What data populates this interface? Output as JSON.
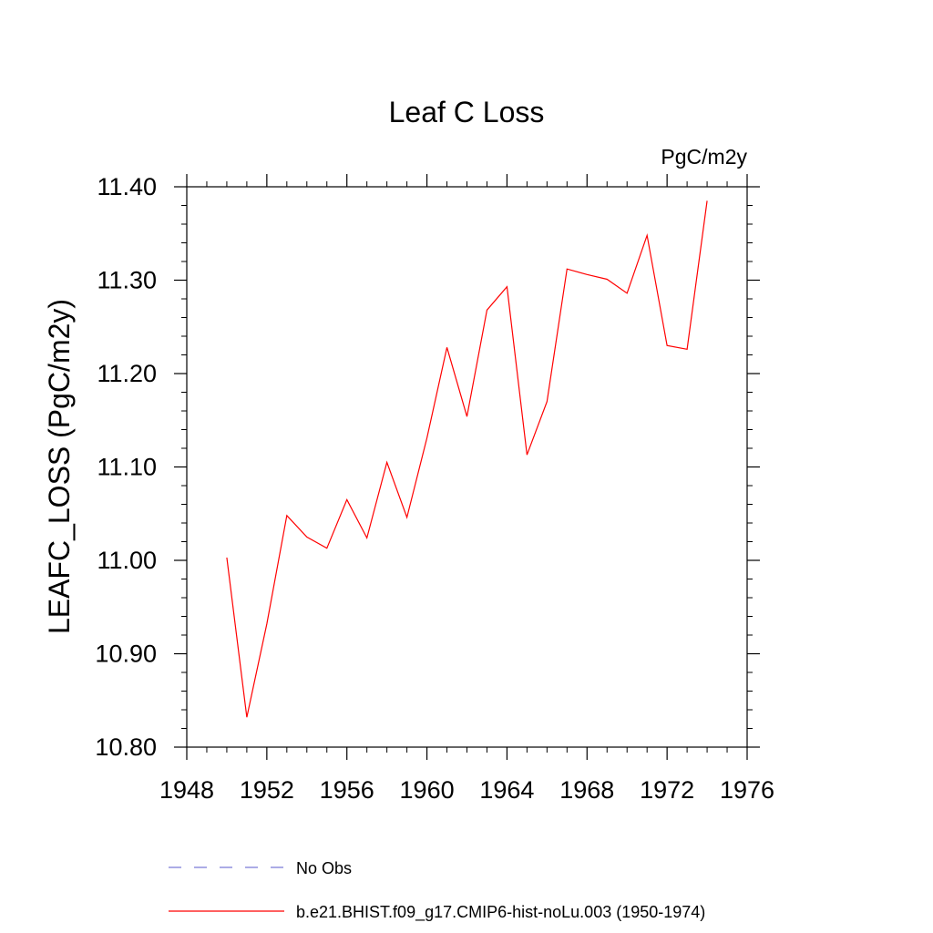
{
  "chart_data": {
    "type": "line",
    "title": "Leaf C Loss",
    "units": "PgC/m2y",
    "ylabel": "LEAFC_LOSS  (PgC/m2y)",
    "xlabel": "",
    "xlim": [
      1948,
      1976
    ],
    "ylim": [
      10.8,
      11.4
    ],
    "x_ticks": [
      1948,
      1952,
      1956,
      1960,
      1964,
      1968,
      1972,
      1976
    ],
    "y_ticks": [
      10.8,
      10.9,
      11.0,
      11.1,
      11.2,
      11.3,
      11.4
    ],
    "x_tick_labels": [
      "1948",
      "1952",
      "1956",
      "1960",
      "1964",
      "1968",
      "1972",
      "1976"
    ],
    "y_tick_labels": [
      "10.80",
      "10.90",
      "11.00",
      "11.10",
      "11.20",
      "11.30",
      "11.40"
    ],
    "grid": false,
    "legend_position": "bottom",
    "series": [
      {
        "name": "b.e21.BHIST.f09_g17.CMIP6-hist-noLu.003 (1950-1974)",
        "color": "#ff0000",
        "dash": "solid",
        "x": [
          1950,
          1951,
          1952,
          1953,
          1954,
          1955,
          1956,
          1957,
          1958,
          1959,
          1960,
          1961,
          1962,
          1963,
          1964,
          1965,
          1966,
          1967,
          1968,
          1969,
          1970,
          1971,
          1972,
          1973,
          1974
        ],
        "y": [
          11.003,
          10.832,
          10.932,
          11.048,
          11.025,
          11.013,
          11.065,
          11.024,
          11.105,
          11.046,
          11.131,
          11.228,
          11.154,
          11.268,
          11.293,
          11.113,
          11.17,
          11.312,
          11.306,
          11.301,
          11.286,
          11.348,
          11.23,
          11.226,
          11.385
        ]
      }
    ],
    "legend": [
      {
        "label": "No Obs",
        "color": "#7b7bd6",
        "dash": "dashed"
      },
      {
        "label": "b.e21.BHIST.f09_g17.CMIP6-hist-noLu.003 (1950-1974)",
        "color": "#ff0000",
        "dash": "solid"
      }
    ]
  }
}
